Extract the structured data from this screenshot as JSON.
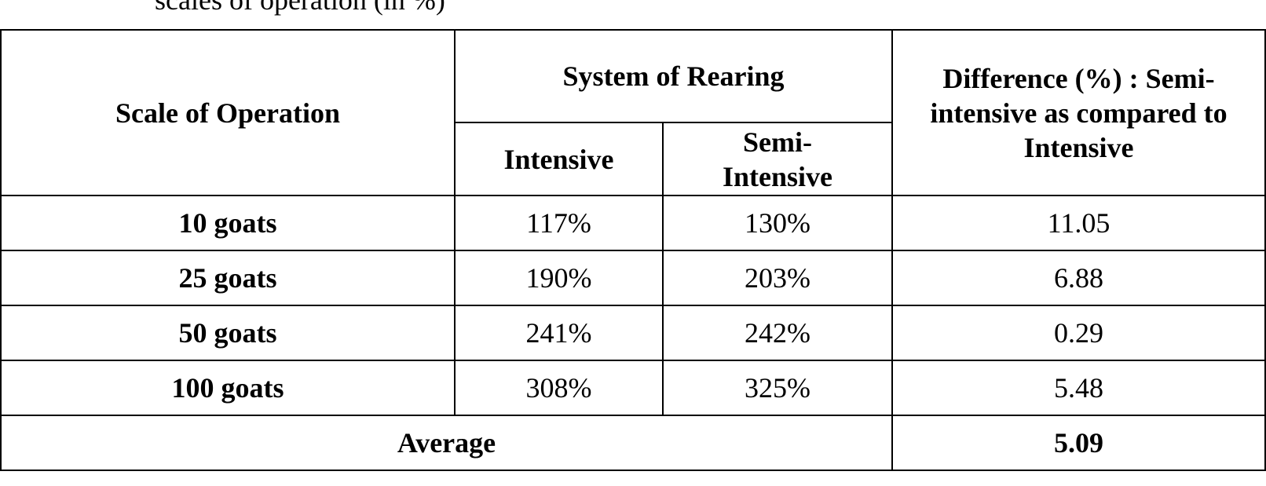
{
  "caption": "scales of operation (in %)",
  "table": {
    "headers": {
      "scale": "Scale of Operation",
      "system": "System of Rearing",
      "intensive": "Intensive",
      "semi_line1": "Semi-",
      "semi_line2": "Intensive",
      "diff_line1": "Difference (%) : Semi-",
      "diff_line2": "intensive as compared to",
      "diff_line3": "Intensive"
    },
    "rows": [
      {
        "scale": "10 goats",
        "intensive": "117%",
        "semi": "130%",
        "difference": "11.05"
      },
      {
        "scale": "25 goats",
        "intensive": "190%",
        "semi": "203%",
        "difference": "6.88"
      },
      {
        "scale": "50 goats",
        "intensive": "241%",
        "semi": "242%",
        "difference": "0.29"
      },
      {
        "scale": "100 goats",
        "intensive": "308%",
        "semi": "325%",
        "difference": "5.48"
      }
    ],
    "average_label": "Average",
    "average_value": "5.09"
  }
}
